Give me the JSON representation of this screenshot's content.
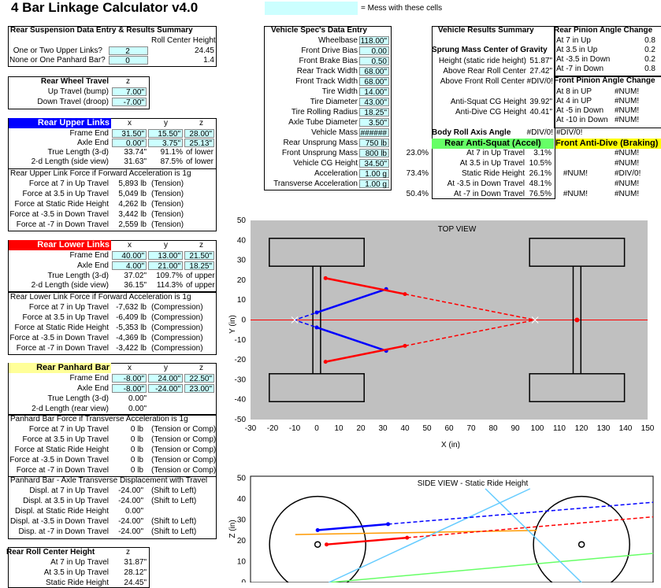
{
  "title": "4 Bar Linkage Calculator v4.0",
  "legend": {
    "text": "= Mess with these cells",
    "color": "#ccffff"
  },
  "rear_data": {
    "header": "Rear Suspension Data Entry & Results Summary",
    "col_header": "Roll Center Height",
    "rows": [
      {
        "label": "One or Two Upper Links?",
        "value": "2",
        "result": "24.45"
      },
      {
        "label": "None or One Panhard Bar?",
        "value": "0",
        "result": "1.4"
      }
    ]
  },
  "wheel_travel": {
    "header": "Rear Wheel Travel",
    "col": "z",
    "rows": [
      {
        "label": "Up Travel (bump)",
        "value": "7.00\""
      },
      {
        "label": "Down Travel (droop)",
        "value": "-7.00\""
      }
    ]
  },
  "upper_links": {
    "header": "Rear Upper Links",
    "cols": [
      "x",
      "y",
      "z"
    ],
    "rows": [
      {
        "label": "Frame End",
        "x": "31.50\"",
        "y": "15.50\"",
        "z": "28.00\""
      },
      {
        "label": "Axle End",
        "x": "0.00\"",
        "y": "3.75\"",
        "z": "25.13\""
      },
      {
        "label": "True Length (3-d)",
        "x": "33.74\"",
        "y": "91.1%",
        "z": "of lower"
      },
      {
        "label": "2-d Length (side view)",
        "x": "31.63\"",
        "y": "87.5%",
        "z": "of lower"
      }
    ],
    "force_header": "Rear Upper Link Force if Forward Acceleration is 1g",
    "forces": [
      {
        "label": "Force at 7 in Up Travel",
        "value": "5,893 lb",
        "note": "(Tension)"
      },
      {
        "label": "Force at 3.5 in Up Travel",
        "value": "5,049 lb",
        "note": "(Tension)"
      },
      {
        "label": "Force at Static Ride Height",
        "value": "4,262 lb",
        "note": "(Tension)"
      },
      {
        "label": "Force at -3.5 in Down Travel",
        "value": "3,442 lb",
        "note": "(Tension)"
      },
      {
        "label": "Force at -7 in Down Travel",
        "value": "2,559 lb",
        "note": "(Tension)"
      }
    ]
  },
  "lower_links": {
    "header": "Rear Lower Links",
    "cols": [
      "x",
      "y",
      "z"
    ],
    "rows": [
      {
        "label": "Frame End",
        "x": "40.00\"",
        "y": "13.00\"",
        "z": "21.50\""
      },
      {
        "label": "Axle End",
        "x": "4.00\"",
        "y": "21.00\"",
        "z": "18.25\""
      },
      {
        "label": "True Length (3-d)",
        "x": "37.02\"",
        "y": "109.7%",
        "z": "of upper"
      },
      {
        "label": "2-d Length (side view)",
        "x": "36.15\"",
        "y": "114.3%",
        "z": "of upper"
      }
    ],
    "force_header": "Rear Lower Link Force if Forward Acceleration is 1g",
    "forces": [
      {
        "label": "Force at 7 in Up Travel",
        "value": "-7,632 lb",
        "note": "(Compression)"
      },
      {
        "label": "Force at 3.5 in Up Travel",
        "value": "-6,409 lb",
        "note": "(Compression)"
      },
      {
        "label": "Force at Static Ride Height",
        "value": "-5,353 lb",
        "note": "(Compression)"
      },
      {
        "label": "Force at -3.5 in Down Travel",
        "value": "-4,369 lb",
        "note": "(Compression)"
      },
      {
        "label": "Force at -7 in Down Travel",
        "value": "-3,422 lb",
        "note": "(Compression)"
      }
    ]
  },
  "panhard": {
    "header": "Rear Panhard Bar",
    "cols": [
      "x",
      "y",
      "z"
    ],
    "rows": [
      {
        "label": "Frame End",
        "x": "-8.00\"",
        "y": "24.00\"",
        "z": "22.50\""
      },
      {
        "label": "Axle End",
        "x": "-8.00\"",
        "y": "-24.00\"",
        "z": "23.00\""
      },
      {
        "label": "True Length (3-d)",
        "x": "0.00\"",
        "y": "",
        "z": ""
      },
      {
        "label": "2-d Length (rear view)",
        "x": "0.00\"",
        "y": "",
        "z": ""
      }
    ],
    "force_header": "Panhard Bar Force if Transverse Acceleration is 1g",
    "forces": [
      {
        "label": "Force at 7 in Up Travel",
        "value": "0 lb",
        "note": "(Tension or Comp)"
      },
      {
        "label": "Force at 3.5 in Up Travel",
        "value": "0 lb",
        "note": "(Tension or Comp)"
      },
      {
        "label": "Force at Static Ride Height",
        "value": "0 lb",
        "note": "(Tension or Comp)"
      },
      {
        "label": "Force at -3.5 in Down Travel",
        "value": "0 lb",
        "note": "(Tension or Comp)"
      },
      {
        "label": "Force at -7 in Down Travel",
        "value": "0 lb",
        "note": "(Tension or Comp)"
      }
    ],
    "disp_header": "Panhard Bar - Axle Transverse Displacement with Travel",
    "disps": [
      {
        "label": "Displ. at 7 in Up Travel",
        "value": "-24.00\"",
        "note": "(Shift to Left)"
      },
      {
        "label": "Displ. at 3.5 in Up Travel",
        "value": "-24.00\"",
        "note": "(Shift to Left)"
      },
      {
        "label": "Displ. at Static Ride Height",
        "value": "0.00\"",
        "note": ""
      },
      {
        "label": "Displ. at -3.5 in Down Travel",
        "value": "-24.00\"",
        "note": "(Shift to Left)"
      },
      {
        "label": "Disp. at -7 in Down Travel",
        "value": "-24.00\"",
        "note": "(Shift to Left)"
      }
    ]
  },
  "roll_center": {
    "header": "Rear Roll Center Height",
    "col": "z",
    "rows": [
      {
        "label": "At 7 in Up Travel",
        "value": "31.87\""
      },
      {
        "label": "At 3.5 in Up Travel",
        "value": "28.12\""
      },
      {
        "label": "Static Ride Height",
        "value": "24.45\""
      }
    ]
  },
  "vehicle_spec": {
    "header": "Vehicle Spec's Data Entry",
    "rows": [
      {
        "label": "Wheelbase",
        "value": "118.00\""
      },
      {
        "label": "Front Drive Bias",
        "value": "0.00"
      },
      {
        "label": "Front Brake Bias",
        "value": "0.50"
      },
      {
        "label": "Rear Track Width",
        "value": "68.00\""
      },
      {
        "label": "Front Track Width",
        "value": "68.00\""
      },
      {
        "label": "Tire Width",
        "value": "14.00\""
      },
      {
        "label": "Tire Diameter",
        "value": "43.00\""
      },
      {
        "label": "Tire Rolling Radius",
        "value": "18.25\""
      },
      {
        "label": "Axle Tube Diameter",
        "value": "3.50\""
      },
      {
        "label": "Vehicle Mass",
        "value": "######"
      },
      {
        "label": "Rear Unsprung Mass",
        "value": "750 lb"
      },
      {
        "label": "Front Unsprung Mass",
        "value": "800 lb",
        "pct": "23.0%"
      },
      {
        "label": "Vehicle CG Height",
        "value": "34.50\""
      },
      {
        "label": "Acceleration",
        "value": "1.00 g",
        "pct": "73.4%"
      },
      {
        "label": "Transverse Acceleration",
        "value": "1.00 g"
      }
    ],
    "extra_pct": "50.4%"
  },
  "vehicle_results": {
    "header": "Vehicle Results Summary",
    "sprung_header": "Sprung Mass Center of Gravity",
    "sprung_rows": [
      {
        "label": "Height (static ride height)",
        "value": "51.87\""
      },
      {
        "label": "Above Rear Roll Center",
        "value": "27.42\""
      },
      {
        "label": "Above Front Roll Center",
        "value": "#DIV/0!"
      }
    ],
    "anti_rows": [
      {
        "label": "Anti-Squat CG Height",
        "value": "39.92\""
      },
      {
        "label": "Anti-Dive CG Height",
        "value": "40.41\""
      }
    ],
    "body_roll_label": "Body Roll Axis Angle",
    "body_roll_values": [
      "#DIV/0!",
      "#DIV/0!"
    ],
    "anti_squat_header": "Rear Anti-Squat (Accel)",
    "anti_squat_rows": [
      {
        "label": "At 7 in Up Travel",
        "value": "3.1%",
        "right": "#NUM!"
      },
      {
        "label": "At 3.5 in Up Travel",
        "value": "10.5%",
        "right": "#NUM!"
      },
      {
        "label": "Static Ride Height",
        "value": "26.1%",
        "mid": "#NUM!",
        "right": "#DIV/0!"
      },
      {
        "label": "At -3.5 in Down Travel",
        "value": "48.1%",
        "right": "#NUM!"
      },
      {
        "label": "At -7 in Down Travel",
        "value": "76.5%",
        "mid": "#NUM!",
        "right": "#NUM!"
      }
    ],
    "anti_dive_header": "Front Anti-Dive (Braking)"
  },
  "pinion_angle": {
    "rear_header": "Rear Pinion Angle Change",
    "rear_rows": [
      {
        "label": "At 7 in Up",
        "value": "0.8"
      },
      {
        "label": "At 3.5 in Up",
        "value": "0.2"
      },
      {
        "label": "At -3.5 in Down",
        "value": "0.2"
      },
      {
        "label": "At -7 in Down",
        "value": "0.8"
      }
    ],
    "front_header": "Front Pinion Angle Change",
    "front_rows": [
      {
        "label": "At 8 in UP",
        "value": "#NUM!"
      },
      {
        "label": "At 4 in UP",
        "value": "#NUM!"
      },
      {
        "label": "At -5 in Down",
        "value": "#NUM!"
      },
      {
        "label": "At -10 in Down",
        "value": "#NUM!"
      }
    ]
  },
  "top_view": {
    "title": "TOP VIEW",
    "xlabel": "X (in)",
    "ylabel": "Y (in)",
    "xlim": [
      -30,
      150
    ],
    "ylim": [
      -50,
      50
    ],
    "xticks": [
      -30,
      -20,
      -10,
      0,
      10,
      20,
      30,
      40,
      50,
      60,
      70,
      80,
      90,
      100,
      110,
      120,
      130,
      140,
      150
    ],
    "yticks": [
      50,
      40,
      30,
      20,
      10,
      0,
      -10,
      -20,
      -30,
      -40,
      -50
    ],
    "upper_links": [
      [
        [
          0,
          3.75
        ],
        [
          31.5,
          15.5
        ]
      ],
      [
        [
          0,
          -3.75
        ],
        [
          31.5,
          -15.5
        ]
      ]
    ],
    "lower_links": [
      [
        [
          4,
          21
        ],
        [
          40,
          13
        ]
      ],
      [
        [
          4,
          -21
        ],
        [
          40,
          -13
        ]
      ]
    ],
    "colors": {
      "upper": "#0000ff",
      "lower": "#ff0000",
      "bg": "#c0c0c0"
    }
  },
  "side_view": {
    "title": "SIDE VIEW - Static Ride Height",
    "ylabel": "Z (in)",
    "yticks": [
      50,
      40,
      30,
      20,
      10,
      0
    ]
  }
}
